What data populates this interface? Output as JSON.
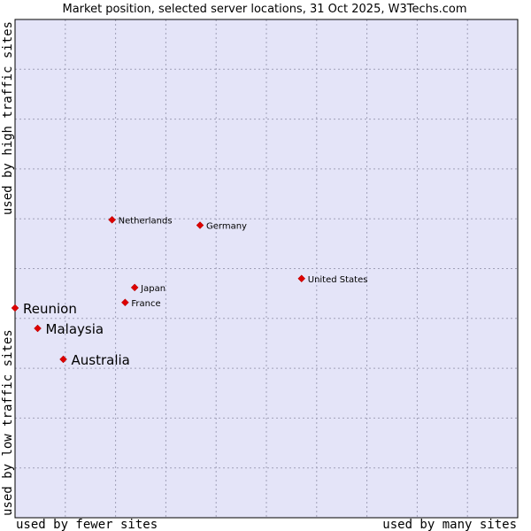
{
  "chart_data": {
    "type": "scatter",
    "title": "Market position, selected server locations, 31 Oct 2025, W3Techs.com",
    "xlabel_left": "used by fewer sites",
    "xlabel_right": "used by many sites",
    "ylabel_bottom": "used by low traffic sites",
    "ylabel_top": "used by high traffic sites",
    "xlim": [
      0,
      100
    ],
    "ylim": [
      0,
      100
    ],
    "grid": true,
    "colors": {
      "plot_bg": "#e4e4f8",
      "grid": "#a0a0b8",
      "marker": "#dd0000",
      "border": "#000000"
    },
    "points": [
      {
        "label": "Netherlands",
        "x": 19.3,
        "y": 59.8,
        "emphasis": false
      },
      {
        "label": "Germany",
        "x": 36.8,
        "y": 58.7,
        "emphasis": false
      },
      {
        "label": "United States",
        "x": 57.0,
        "y": 48.0,
        "emphasis": false
      },
      {
        "label": "Japan",
        "x": 23.8,
        "y": 46.2,
        "emphasis": false
      },
      {
        "label": "France",
        "x": 21.9,
        "y": 43.2,
        "emphasis": false
      },
      {
        "label": "Reunion",
        "x": 0.0,
        "y": 42.1,
        "emphasis": true
      },
      {
        "label": "Malaysia",
        "x": 4.5,
        "y": 38.0,
        "emphasis": true
      },
      {
        "label": "Australia",
        "x": 9.6,
        "y": 31.8,
        "emphasis": true
      }
    ]
  }
}
